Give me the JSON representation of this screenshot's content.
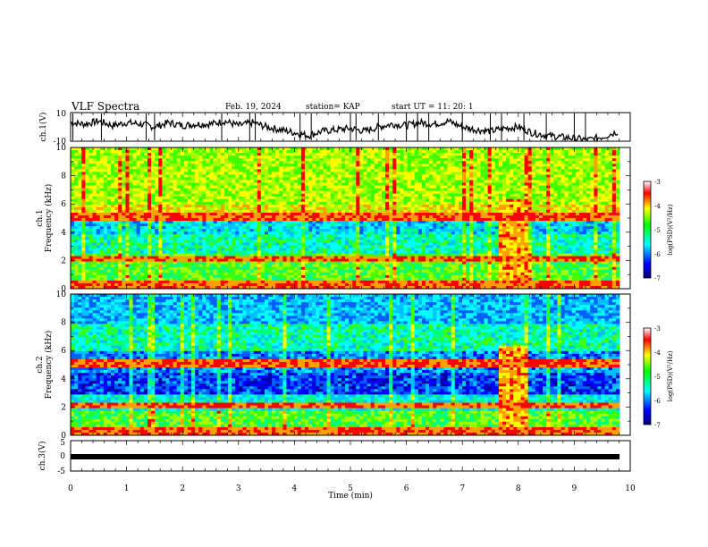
{
  "header": {
    "title": "VLF Spectra",
    "date": "Feb. 19, 2024",
    "station": "station= KAP",
    "start": "start  UT =   11: 20: 1"
  },
  "chart_data": [
    {
      "type": "line",
      "name": "ch1-waveform",
      "ylabel": "ch.1(V)",
      "ylim": [
        -10,
        10
      ],
      "yticks": [
        "10",
        "-10"
      ],
      "xlim": [
        0,
        10
      ],
      "x": [
        0.0,
        0.25,
        0.5,
        0.75,
        1.0,
        1.25,
        1.5,
        1.75,
        2.0,
        2.25,
        2.5,
        2.75,
        3.0,
        3.25,
        3.5,
        3.75,
        4.0,
        4.25,
        4.5,
        4.75,
        5.0,
        5.25,
        5.5,
        5.75,
        6.0,
        6.25,
        6.5,
        6.75,
        7.0,
        7.25,
        7.5,
        7.75,
        8.0,
        8.25,
        8.5,
        8.75,
        9.0,
        9.25,
        9.5,
        9.8
      ],
      "y": [
        3,
        2,
        4,
        1,
        3,
        2,
        0,
        3,
        1,
        2,
        2,
        4,
        1,
        3,
        0,
        -2,
        -4,
        -6,
        -3,
        -2,
        -1,
        -3,
        0,
        2,
        1,
        3,
        2,
        4,
        0,
        -2,
        -3,
        -1,
        0,
        -4,
        -6,
        -7,
        -8,
        -9,
        -7,
        -3
      ]
    },
    {
      "type": "heatmap",
      "name": "ch1-spectrogram",
      "ylabel": "ch.1\nFrequency (kHz)",
      "xlim": [
        0,
        10
      ],
      "ylim": [
        0,
        10
      ],
      "yticks": [
        "0",
        "2",
        "4",
        "6",
        "8",
        "10"
      ],
      "colorbar": {
        "label": "log(PSD)(V²/Hz)",
        "range": [
          -7,
          -3
        ],
        "ticks": [
          "-3",
          "-4",
          "-5",
          "-6",
          "-7"
        ]
      }
    },
    {
      "type": "heatmap",
      "name": "ch2-spectrogram",
      "ylabel": "ch.2\nFrequency (kHz)",
      "xlim": [
        0,
        10
      ],
      "ylim": [
        0,
        10
      ],
      "yticks": [
        "0",
        "2",
        "4",
        "6",
        "8",
        "10"
      ],
      "colorbar": {
        "label": "log(PSD)(V²/Hz)",
        "range": [
          -7,
          -3
        ],
        "ticks": [
          "-3",
          "-4",
          "-5",
          "-6",
          "-7"
        ]
      }
    },
    {
      "type": "line",
      "name": "ch3-waveform",
      "ylabel": "ch.3(V)",
      "ylim": [
        -5,
        5
      ],
      "yticks": [
        "5",
        "0",
        "-5"
      ],
      "xlim": [
        0,
        10
      ],
      "x": [
        0,
        9.8
      ],
      "y": [
        0,
        0
      ],
      "xlabel": "Time  (min)",
      "xticks": [
        "0",
        "1",
        "2",
        "3",
        "4",
        "5",
        "6",
        "7",
        "8",
        "9",
        "10"
      ]
    }
  ],
  "labels": {
    "ch1_wave": "ch.1(V)",
    "ch1_spec_a": "ch.1",
    "ch1_spec_b": "Frequency (kHz)",
    "ch2_spec_a": "ch.2",
    "ch2_spec_b": "Frequency (kHz)",
    "ch3_wave": "ch.3(V)",
    "xlabel": "Time  (min)",
    "cbar_label": "log(PSD)(V²/Hz)"
  }
}
